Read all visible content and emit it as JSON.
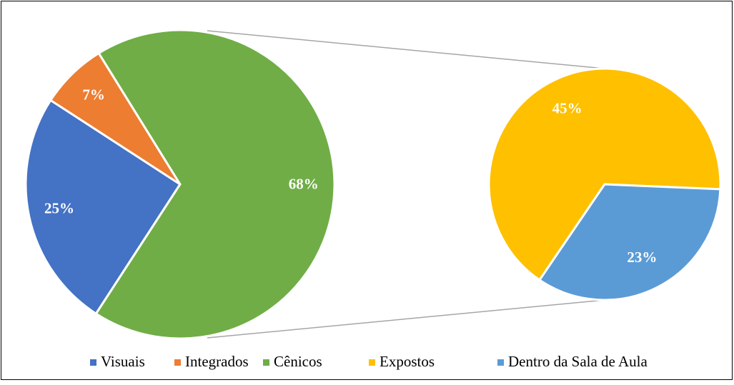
{
  "chart_data": [
    {
      "type": "pie",
      "categories": [
        "Visuais",
        "Integrados",
        "Cênicos"
      ],
      "values": [
        25,
        7,
        68
      ],
      "value_labels": [
        "25%",
        "7%",
        "68%"
      ],
      "colors": [
        "#4472c4",
        "#ed7d31",
        "#70ad47"
      ]
    },
    {
      "type": "pie",
      "categories": [
        "Expostos",
        "Dentro da Sala de Aula"
      ],
      "values": [
        45,
        23
      ],
      "value_labels": [
        "45%",
        "23%"
      ],
      "colors": [
        "#ffc000",
        "#5b9bd5"
      ]
    }
  ]
}
